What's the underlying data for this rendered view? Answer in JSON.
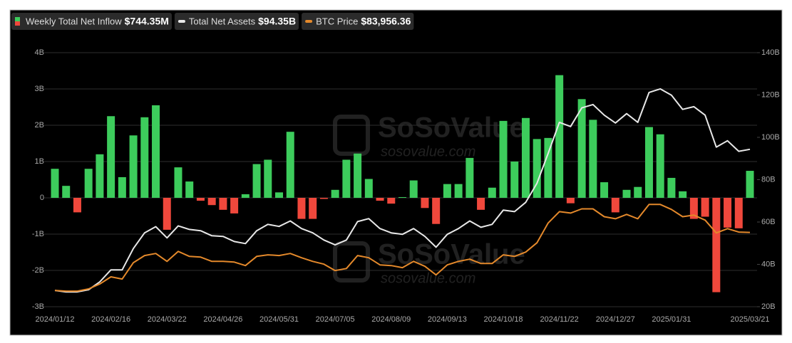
{
  "chart_data": {
    "type": "bar-line",
    "watermark": {
      "brand": "SoSoValue",
      "site": "sosovalue.com"
    },
    "categories": [
      "2024/01/12",
      null,
      null,
      null,
      null,
      "2024/02/16",
      null,
      null,
      null,
      null,
      "2024/03/22",
      null,
      null,
      null,
      null,
      "2024/04/26",
      null,
      null,
      null,
      null,
      "2024/05/31",
      null,
      null,
      null,
      null,
      "2024/07/05",
      null,
      null,
      null,
      null,
      "2024/08/09",
      null,
      null,
      null,
      null,
      "2024/09/13",
      null,
      null,
      null,
      null,
      "2024/10/18",
      null,
      null,
      null,
      null,
      "2024/11/22",
      null,
      null,
      null,
      null,
      "2024/12/27",
      null,
      null,
      null,
      null,
      "2025/01/31",
      null,
      null,
      null,
      null,
      null,
      null,
      "2025/03/21"
    ],
    "ylim": [
      -3,
      4
    ],
    "yticks": [
      {
        "value": 4,
        "label": "4B"
      },
      {
        "value": 3,
        "label": "3B"
      },
      {
        "value": 2,
        "label": "2B"
      },
      {
        "value": 1,
        "label": "1B"
      },
      0,
      {
        "value": -1,
        "label": "-1B"
      },
      {
        "value": -2,
        "label": "-2B"
      },
      {
        "value": -3,
        "label": "-3B"
      }
    ],
    "y2lim": [
      20,
      140
    ],
    "y2ticks": [
      {
        "value": 140,
        "label": "140B"
      },
      {
        "value": 120,
        "label": "120B"
      },
      {
        "value": 100,
        "label": "100B"
      },
      {
        "value": 80,
        "label": "80B"
      },
      {
        "value": 60,
        "label": "60B"
      },
      {
        "value": 40,
        "label": "40B"
      },
      {
        "value": 20,
        "label": "20B"
      }
    ],
    "y3lim": [
      30480,
      213360
    ],
    "grid": true,
    "series": [
      {
        "name": "Weekly Total Net Inflow",
        "type": "bar",
        "color": "#3dcc5c",
        "negative_color": "#f0483c",
        "legend_value": "$744.35M",
        "values": [
          0.8,
          0.33,
          -0.4,
          0.8,
          1.2,
          2.25,
          0.57,
          1.72,
          2.22,
          2.55,
          -0.88,
          0.84,
          0.45,
          -0.08,
          -0.2,
          -0.33,
          -0.43,
          0.1,
          0.93,
          1.05,
          0.15,
          1.82,
          -0.58,
          -0.58,
          -0.03,
          0.22,
          1.05,
          1.22,
          0.52,
          -0.08,
          -0.16,
          0.02,
          0.48,
          -0.28,
          -0.72,
          0.38,
          0.38,
          1.1,
          -0.33,
          0.28,
          2.12,
          1.0,
          2.2,
          1.62,
          1.65,
          3.38,
          -0.15,
          2.72,
          2.15,
          0.43,
          -0.4,
          0.22,
          0.3,
          1.95,
          1.75,
          0.55,
          0.18,
          -0.58,
          -0.52,
          -2.6,
          -0.82,
          -0.84,
          0.74435
        ]
      },
      {
        "name": "Total Net Assets",
        "type": "line",
        "axis": "y2",
        "color": "#e8e8e8",
        "legend_value": "$94.35B",
        "values": [
          27.7,
          27,
          27,
          28,
          31.7,
          37.4,
          37.4,
          47.5,
          54.9,
          57.8,
          52.5,
          58.2,
          56.5,
          55.9,
          53.5,
          53.2,
          50.8,
          49.8,
          55.9,
          58.9,
          57.9,
          60.5,
          56.9,
          54.9,
          51.5,
          49.2,
          51.5,
          60.2,
          61.6,
          56.9,
          54.9,
          54.2,
          56.9,
          53.2,
          48.1,
          54.2,
          56.9,
          60.5,
          57.5,
          58.9,
          65.6,
          64.9,
          69.3,
          78.3,
          92.4,
          107.1,
          105.1,
          113.9,
          115.5,
          110.5,
          106.8,
          111.2,
          107.1,
          121.2,
          122.9,
          119.9,
          113.2,
          114.5,
          110.5,
          95.4,
          98.4,
          93.4,
          94.35
        ]
      },
      {
        "name": "BTC Price",
        "type": "line",
        "axis": "y3",
        "color": "#e4892b",
        "legend_value": "$83,956.36",
        "values": [
          42200,
          41700,
          41700,
          43300,
          46800,
          52000,
          50400,
          62200,
          67300,
          68800,
          63100,
          70300,
          66700,
          66200,
          63100,
          63100,
          62600,
          60100,
          66700,
          67800,
          67300,
          68800,
          65700,
          63100,
          61100,
          56500,
          58000,
          67300,
          65700,
          60600,
          60100,
          58600,
          63100,
          59600,
          53400,
          60600,
          63100,
          64700,
          61600,
          61600,
          67800,
          66700,
          69800,
          76500,
          90700,
          98900,
          97900,
          100900,
          100900,
          95300,
          93800,
          96900,
          93800,
          104100,
          104100,
          100500,
          95300,
          96400,
          92800,
          83600,
          86700,
          84200,
          83956.36
        ]
      }
    ]
  }
}
